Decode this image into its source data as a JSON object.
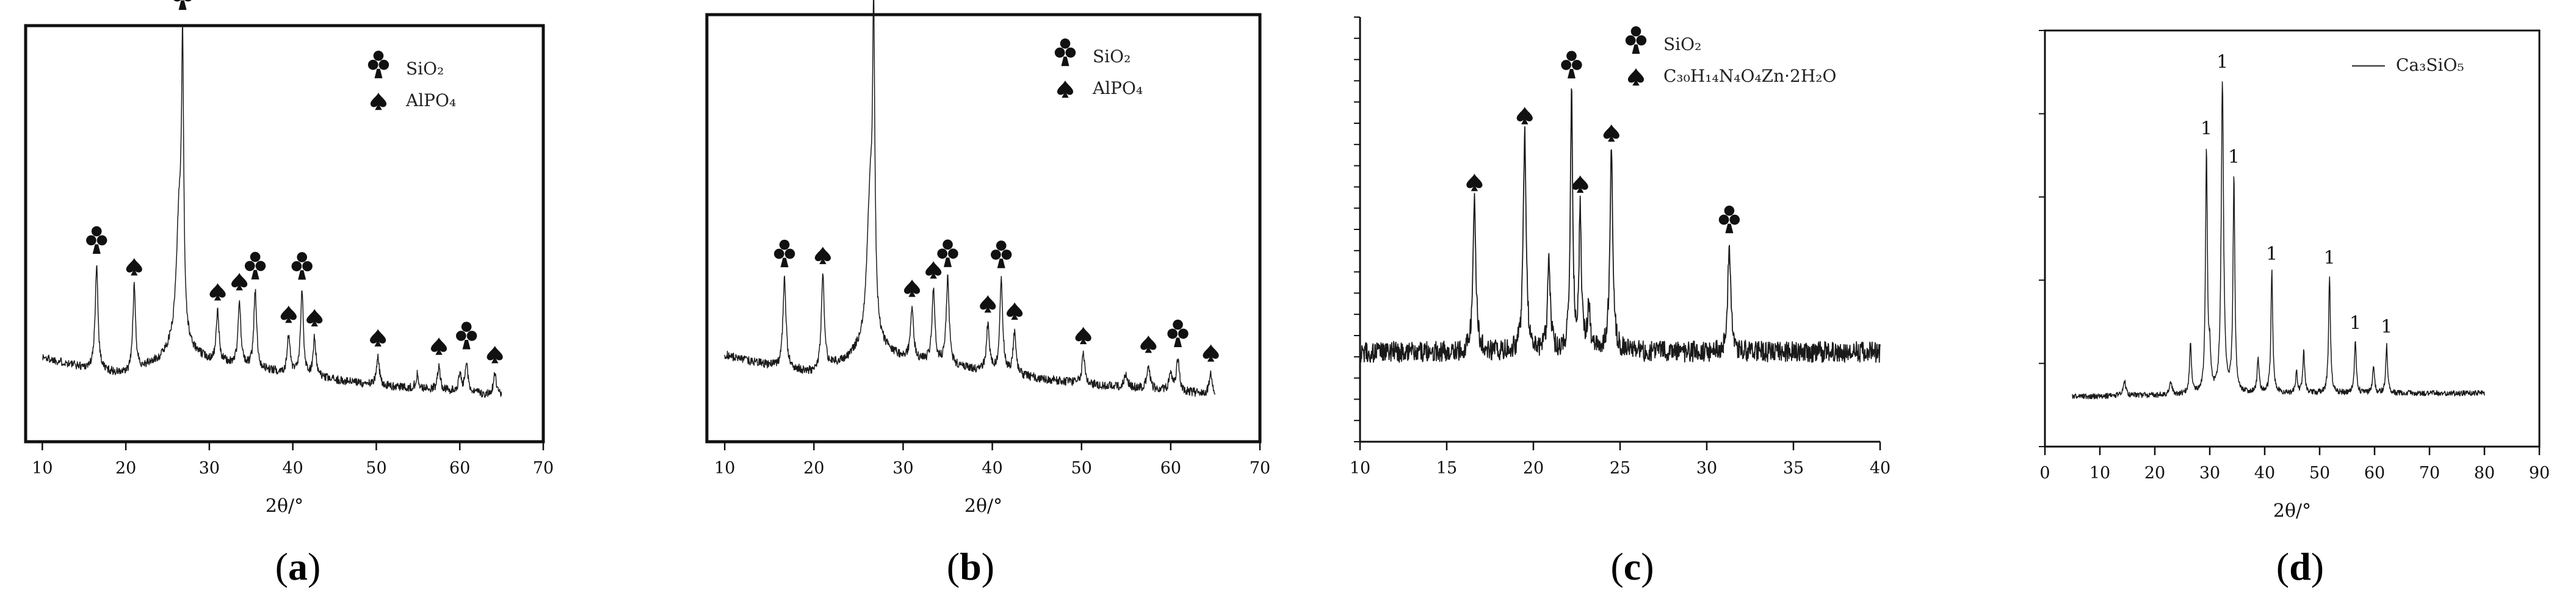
{
  "figure": {
    "panel_captions": [
      "(a)",
      "(b)",
      "(c)",
      "(d)"
    ]
  },
  "chart_data": [
    {
      "panel": "(a)",
      "type": "line",
      "xlabel": "2θ/°",
      "ylabel": "",
      "xlim": [
        8,
        70
      ],
      "ylim": [
        0,
        1
      ],
      "xticks": [
        10,
        20,
        30,
        40,
        50,
        60,
        70
      ],
      "show_y_ticks": false,
      "grid": false,
      "legend_position": "top-right",
      "legend": [
        {
          "symbol": "club",
          "label": "SiO₂"
        },
        {
          "symbol": "spade",
          "label": "AlPO₄"
        }
      ],
      "series": [
        {
          "baseline": [
            [
              10,
              0.17
            ],
            [
              15,
              0.14
            ],
            [
              20,
              0.12
            ],
            [
              24,
              0.16
            ],
            [
              26,
              0.2
            ],
            [
              30,
              0.16
            ],
            [
              35,
              0.14
            ],
            [
              40,
              0.12
            ],
            [
              50,
              0.09
            ],
            [
              60,
              0.07
            ],
            [
              65,
              0.06
            ]
          ],
          "peaks": [
            [
              16.5,
              0.3,
              0.2
            ],
            [
              21.0,
              0.24,
              0.2
            ],
            [
              26.4,
              0.38,
              0.4
            ],
            [
              26.8,
              0.75,
              0.15
            ],
            [
              31.0,
              0.14,
              0.2
            ],
            [
              33.6,
              0.18,
              0.2
            ],
            [
              35.5,
              0.22,
              0.2
            ],
            [
              39.5,
              0.11,
              0.2
            ],
            [
              41.1,
              0.24,
              0.2
            ],
            [
              42.6,
              0.11,
              0.2
            ],
            [
              50.2,
              0.08,
              0.2
            ],
            [
              54.9,
              0.04,
              0.2
            ],
            [
              57.5,
              0.07,
              0.2
            ],
            [
              60.0,
              0.05,
              0.2
            ],
            [
              60.8,
              0.09,
              0.2
            ],
            [
              64.2,
              0.06,
              0.2
            ]
          ],
          "noise": 0.012
        }
      ],
      "markers": [
        {
          "x": 16.5,
          "symbol": "club"
        },
        {
          "x": 21.0,
          "symbol": "spade"
        },
        {
          "x": 26.8,
          "symbol": "club"
        },
        {
          "x": 31.0,
          "symbol": "spade"
        },
        {
          "x": 33.6,
          "symbol": "spade"
        },
        {
          "x": 35.5,
          "symbol": "club"
        },
        {
          "x": 39.5,
          "symbol": "spade"
        },
        {
          "x": 41.1,
          "symbol": "club"
        },
        {
          "x": 42.6,
          "symbol": "spade"
        },
        {
          "x": 50.2,
          "symbol": "spade"
        },
        {
          "x": 57.5,
          "symbol": "spade"
        },
        {
          "x": 60.8,
          "symbol": "club"
        },
        {
          "x": 64.2,
          "symbol": "spade"
        }
      ]
    },
    {
      "panel": "(b)",
      "type": "line",
      "xlabel": "2θ/°",
      "ylabel": "",
      "xlim": [
        8,
        70
      ],
      "ylim": [
        0,
        1
      ],
      "xticks": [
        10,
        20,
        30,
        40,
        50,
        60,
        70
      ],
      "show_y_ticks": false,
      "grid": false,
      "legend_position": "top-right",
      "legend": [
        {
          "symbol": "club",
          "label": "SiO₂"
        },
        {
          "symbol": "spade",
          "label": "AlPO₄"
        }
      ],
      "series": [
        {
          "baseline": [
            [
              10,
              0.17
            ],
            [
              15,
              0.14
            ],
            [
              20,
              0.12
            ],
            [
              24,
              0.16
            ],
            [
              26,
              0.2
            ],
            [
              30,
              0.16
            ],
            [
              35,
              0.14
            ],
            [
              40,
              0.12
            ],
            [
              50,
              0.09
            ],
            [
              60,
              0.07
            ],
            [
              65,
              0.06
            ]
          ],
          "peaks": [
            [
              16.7,
              0.25,
              0.2
            ],
            [
              21.0,
              0.26,
              0.2
            ],
            [
              26.3,
              0.4,
              0.4
            ],
            [
              26.7,
              0.79,
              0.15
            ],
            [
              31.0,
              0.14,
              0.2
            ],
            [
              33.4,
              0.2,
              0.2
            ],
            [
              35.0,
              0.24,
              0.2
            ],
            [
              39.5,
              0.13,
              0.2
            ],
            [
              41.0,
              0.26,
              0.2
            ],
            [
              42.5,
              0.12,
              0.2
            ],
            [
              50.2,
              0.08,
              0.2
            ],
            [
              55.0,
              0.04,
              0.2
            ],
            [
              57.5,
              0.07,
              0.2
            ],
            [
              60.0,
              0.05,
              0.2
            ],
            [
              60.8,
              0.09,
              0.2
            ],
            [
              64.5,
              0.06,
              0.2
            ]
          ],
          "noise": 0.012
        }
      ],
      "markers": [
        {
          "x": 16.7,
          "symbol": "club"
        },
        {
          "x": 21.0,
          "symbol": "spade"
        },
        {
          "x": 26.7,
          "symbol": "club"
        },
        {
          "x": 31.0,
          "symbol": "spade"
        },
        {
          "x": 33.4,
          "symbol": "spade"
        },
        {
          "x": 35.0,
          "symbol": "club"
        },
        {
          "x": 39.5,
          "symbol": "spade"
        },
        {
          "x": 41.0,
          "symbol": "club"
        },
        {
          "x": 42.5,
          "symbol": "spade"
        },
        {
          "x": 50.2,
          "symbol": "spade"
        },
        {
          "x": 57.5,
          "symbol": "spade"
        },
        {
          "x": 60.8,
          "symbol": "club"
        },
        {
          "x": 64.5,
          "symbol": "spade"
        }
      ]
    },
    {
      "panel": "(c)",
      "type": "line",
      "xlabel": "",
      "ylabel": "",
      "xlim": [
        10,
        40
      ],
      "ylim": [
        0,
        1
      ],
      "xticks": [
        10,
        15,
        20,
        25,
        30,
        35,
        40
      ],
      "show_y_ticks": true,
      "y_minor_ticks": 20,
      "grid": false,
      "frame": "left-bottom",
      "legend_position": "top-right",
      "legend": [
        {
          "symbol": "club",
          "label": "SiO₂"
        },
        {
          "symbol": "spade",
          "label": "C₃₀H₁₄N₄O₄Zn·2H₂O"
        }
      ],
      "series": [
        {
          "baseline": [
            [
              10,
              0.16
            ],
            [
              20,
              0.16
            ],
            [
              30,
              0.16
            ],
            [
              40,
              0.16
            ]
          ],
          "peaks": [
            [
              16.6,
              0.43,
              0.1
            ],
            [
              19.5,
              0.62,
              0.1
            ],
            [
              20.9,
              0.25,
              0.1
            ],
            [
              22.2,
              0.74,
              0.08
            ],
            [
              22.7,
              0.4,
              0.08
            ],
            [
              23.2,
              0.12,
              0.1
            ],
            [
              24.5,
              0.57,
              0.1
            ],
            [
              31.3,
              0.31,
              0.1
            ]
          ],
          "noise": 0.03
        }
      ],
      "markers": [
        {
          "x": 16.6,
          "symbol": "spade"
        },
        {
          "x": 19.5,
          "symbol": "spade"
        },
        {
          "x": 22.2,
          "symbol": "club"
        },
        {
          "x": 22.7,
          "symbol": "spade"
        },
        {
          "x": 24.5,
          "symbol": "spade"
        },
        {
          "x": 31.3,
          "symbol": "club"
        }
      ]
    },
    {
      "panel": "(d)",
      "type": "line",
      "xlabel": "2θ/°",
      "ylabel": "",
      "xlim": [
        0,
        90
      ],
      "ylim": [
        0,
        1
      ],
      "xticks": [
        0,
        10,
        20,
        30,
        40,
        50,
        60,
        70,
        80,
        90
      ],
      "show_y_ticks": true,
      "y_major_ticks": 5,
      "grid": false,
      "legend_position": "top-right",
      "legend": [
        {
          "symbol": "line",
          "label": "Ca₃SiO₅"
        }
      ],
      "series": [
        {
          "baseline": [
            [
              5,
              0.06
            ],
            [
              40,
              0.07
            ],
            [
              80,
              0.07
            ]
          ],
          "peaks": [
            [
              14.5,
              0.04,
              0.3
            ],
            [
              22.9,
              0.03,
              0.3
            ],
            [
              26.5,
              0.15,
              0.2
            ],
            [
              29.4,
              0.7,
              0.2
            ],
            [
              30.0,
              0.1,
              0.2
            ],
            [
              32.3,
              0.9,
              0.25
            ],
            [
              34.4,
              0.62,
              0.2
            ],
            [
              38.8,
              0.1,
              0.2
            ],
            [
              41.3,
              0.35,
              0.2
            ],
            [
              45.8,
              0.06,
              0.2
            ],
            [
              47.1,
              0.12,
              0.2
            ],
            [
              51.8,
              0.34,
              0.2
            ],
            [
              56.5,
              0.15,
              0.2
            ],
            [
              59.8,
              0.08,
              0.2
            ],
            [
              62.2,
              0.14,
              0.2
            ]
          ],
          "noise": 0.008
        }
      ],
      "markers": [
        {
          "x": 29.4,
          "symbol": "label-1"
        },
        {
          "x": 32.3,
          "symbol": "label-1"
        },
        {
          "x": 34.4,
          "symbol": "label-1"
        },
        {
          "x": 41.3,
          "symbol": "label-1"
        },
        {
          "x": 51.8,
          "symbol": "label-1"
        },
        {
          "x": 56.5,
          "symbol": "label-1"
        },
        {
          "x": 62.2,
          "symbol": "label-1"
        }
      ]
    }
  ]
}
